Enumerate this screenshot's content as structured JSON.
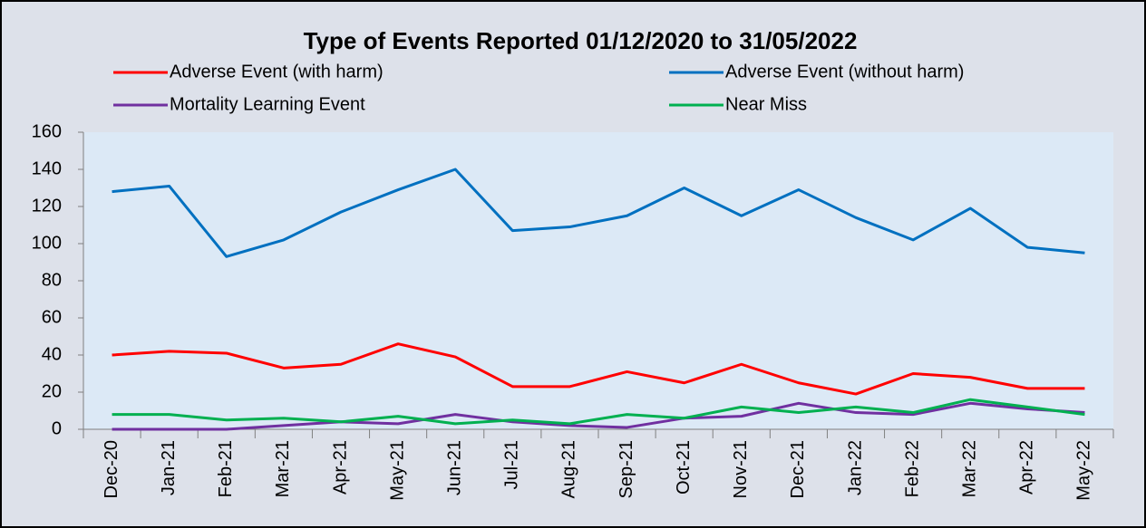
{
  "chart_data": {
    "type": "line",
    "title": "Type of Events Reported 01/12/2020 to 31/05/2022",
    "categories": [
      "Dec-20",
      "Jan-21",
      "Feb-21",
      "Mar-21",
      "Apr-21",
      "May-21",
      "Jun-21",
      "Jul-21",
      "Aug-21",
      "Sep-21",
      "Oct-21",
      "Nov-21",
      "Dec-21",
      "Jan-22",
      "Feb-22",
      "Mar-22",
      "Apr-22",
      "May-22"
    ],
    "series": [
      {
        "name": "Adverse Event (with harm)",
        "color": "#ff0000",
        "values": [
          40,
          42,
          41,
          33,
          35,
          46,
          39,
          23,
          23,
          31,
          25,
          35,
          25,
          19,
          30,
          28,
          22,
          22
        ]
      },
      {
        "name": "Adverse Event (without harm)",
        "color": "#0070c0",
        "values": [
          128,
          131,
          93,
          102,
          117,
          129,
          140,
          107,
          109,
          115,
          130,
          115,
          129,
          114,
          102,
          119,
          98,
          95
        ]
      },
      {
        "name": "Mortality Learning Event",
        "color": "#7030a0",
        "values": [
          0,
          0,
          0,
          2,
          4,
          3,
          8,
          4,
          2,
          1,
          6,
          7,
          14,
          9,
          8,
          14,
          11,
          9
        ]
      },
      {
        "name": "Near Miss",
        "color": "#00b050",
        "values": [
          8,
          8,
          5,
          6,
          4,
          7,
          3,
          5,
          3,
          8,
          6,
          12,
          9,
          12,
          9,
          16,
          12,
          8
        ]
      }
    ],
    "ylim": [
      0,
      160
    ],
    "yticks": [
      0,
      20,
      40,
      60,
      80,
      100,
      120,
      140,
      160
    ],
    "grid": false,
    "legend": "top"
  }
}
